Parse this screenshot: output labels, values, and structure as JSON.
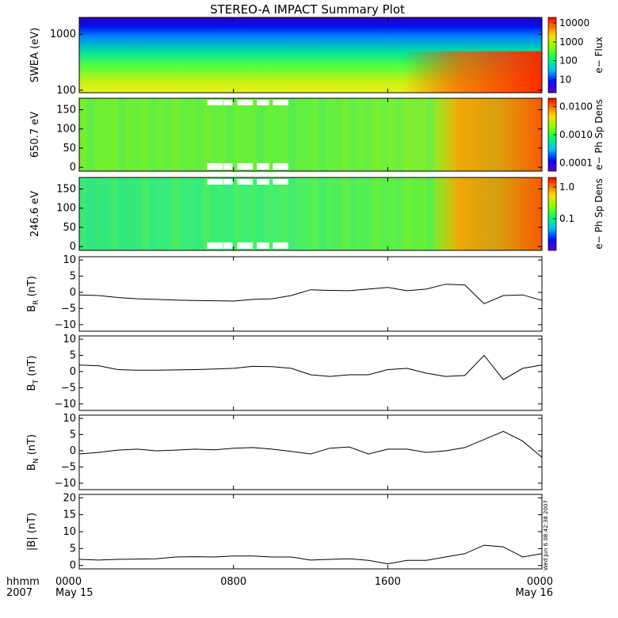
{
  "title": "STEREO-A IMPACT Summary Plot",
  "footer": {
    "hhmm": "hhmm",
    "year": "2007",
    "stamp": "Wed Jun  6 08:42:38 2007"
  },
  "colors": {
    "line": "#000000",
    "spectrogram_gap": "#ffffff"
  },
  "chart_data": [
    {
      "id": "swea",
      "type": "heatmap",
      "ylabel": "SWEA (eV)",
      "yscale": "log",
      "ylim": [
        90,
        2000
      ],
      "yticks": [
        {
          "v": 100,
          "label": "100"
        },
        {
          "v": 1000,
          "label": "1000"
        }
      ],
      "colorbar": {
        "label": "e− Flux",
        "scale": "log",
        "range": [
          2,
          20000
        ],
        "ticks": [
          {
            "v": 10,
            "label": "10"
          },
          {
            "v": 100,
            "label": "100"
          },
          {
            "v": 1000,
            "label": "1000"
          },
          {
            "v": 10000,
            "label": "10000"
          }
        ]
      },
      "colormap": "rainbow (purple-blue-cyan-green-yellow-red)"
    },
    {
      "id": "pad650",
      "type": "heatmap",
      "ylabel": "650.7 eV",
      "ylim": [
        -10,
        180
      ],
      "yticks": [
        {
          "v": 0,
          "label": "0"
        },
        {
          "v": 50,
          "label": "50"
        },
        {
          "v": 100,
          "label": "100"
        },
        {
          "v": 150,
          "label": "150"
        }
      ],
      "colorbar": {
        "label": "e− Ph Sp Dens",
        "scale": "log",
        "range": [
          5e-05,
          0.02
        ],
        "ticks": [
          {
            "v": 0.0001,
            "label": "0.0001"
          },
          {
            "v": 0.001,
            "label": "0.0010"
          },
          {
            "v": 0.01,
            "label": "0.0100"
          }
        ]
      }
    },
    {
      "id": "pad246",
      "type": "heatmap",
      "ylabel": "246.6 eV",
      "ylim": [
        -10,
        180
      ],
      "yticks": [
        {
          "v": 0,
          "label": "0"
        },
        {
          "v": 50,
          "label": "50"
        },
        {
          "v": 100,
          "label": "100"
        },
        {
          "v": 150,
          "label": "150"
        }
      ],
      "colorbar": {
        "label": "e− Ph Sp Dens",
        "scale": "log",
        "range": [
          0.01,
          2.0
        ],
        "ticks": [
          {
            "v": 0.1,
            "label": "0.1"
          },
          {
            "v": 1.0,
            "label": "1.0"
          }
        ]
      }
    },
    {
      "id": "br",
      "type": "line",
      "ylabel_main": "B",
      "ylabel_sub": "R",
      "ylabel_unit": " (nT)",
      "ylim": [
        -12,
        11
      ],
      "yticks": [
        {
          "v": -10,
          "label": "−10"
        },
        {
          "v": -5,
          "label": "−5"
        },
        {
          "v": 0,
          "label": "0"
        },
        {
          "v": 5,
          "label": "5"
        },
        {
          "v": 10,
          "label": "10"
        }
      ],
      "x": [
        0,
        1,
        2,
        3,
        4,
        5,
        6,
        7,
        8,
        9,
        10,
        11,
        12,
        13,
        14,
        15,
        16,
        17,
        18,
        19,
        20,
        21,
        22,
        23,
        24
      ],
      "values": [
        -0.8,
        -1.0,
        -1.6,
        -2.0,
        -2.2,
        -2.4,
        -2.5,
        -2.6,
        -2.7,
        -2.2,
        -2.0,
        -1.0,
        0.8,
        0.6,
        0.5,
        1.0,
        1.5,
        0.5,
        1.0,
        2.5,
        2.3,
        -3.5,
        -1.0,
        -0.8,
        -2.5
      ]
    },
    {
      "id": "bt",
      "type": "line",
      "ylabel_main": "B",
      "ylabel_sub": "T",
      "ylabel_unit": " (nT)",
      "ylim": [
        -12,
        11
      ],
      "yticks": [
        {
          "v": -10,
          "label": "−10"
        },
        {
          "v": -5,
          "label": "−5"
        },
        {
          "v": 0,
          "label": "0"
        },
        {
          "v": 5,
          "label": "5"
        },
        {
          "v": 10,
          "label": "10"
        }
      ],
      "x": [
        0,
        1,
        2,
        3,
        4,
        5,
        6,
        7,
        8,
        9,
        10,
        11,
        12,
        13,
        14,
        15,
        16,
        17,
        18,
        19,
        20,
        21,
        22,
        23,
        24
      ],
      "values": [
        2.0,
        1.8,
        0.6,
        0.4,
        0.4,
        0.5,
        0.6,
        0.8,
        1.0,
        1.6,
        1.5,
        1.0,
        -1.0,
        -1.5,
        -1.0,
        -1.0,
        0.6,
        1.0,
        -0.5,
        -1.5,
        -1.2,
        5.0,
        -2.5,
        1.0,
        2.0
      ]
    },
    {
      "id": "bn",
      "type": "line",
      "ylabel_main": "B",
      "ylabel_sub": "N",
      "ylabel_unit": " (nT)",
      "ylim": [
        -12,
        11
      ],
      "yticks": [
        {
          "v": -10,
          "label": "−10"
        },
        {
          "v": -5,
          "label": "−5"
        },
        {
          "v": 0,
          "label": "0"
        },
        {
          "v": 5,
          "label": "5"
        },
        {
          "v": 10,
          "label": "10"
        }
      ],
      "x": [
        0,
        1,
        2,
        3,
        4,
        5,
        6,
        7,
        8,
        9,
        10,
        11,
        12,
        13,
        14,
        15,
        16,
        17,
        18,
        19,
        20,
        21,
        22,
        23,
        24
      ],
      "values": [
        -1.0,
        -0.5,
        0.2,
        0.5,
        0.0,
        0.2,
        0.5,
        0.3,
        0.8,
        1.0,
        0.5,
        -0.2,
        -1.0,
        0.8,
        1.2,
        -1.0,
        0.5,
        0.5,
        -0.5,
        0.0,
        1.0,
        3.5,
        6.0,
        3.0,
        -2.0
      ]
    },
    {
      "id": "bmag",
      "type": "line",
      "ylabel_main": "|B|",
      "ylabel_sub": "",
      "ylabel_unit": " (nT)",
      "ylim": [
        -1,
        21
      ],
      "yticks": [
        {
          "v": 0,
          "label": "0"
        },
        {
          "v": 5,
          "label": "5"
        },
        {
          "v": 10,
          "label": "10"
        },
        {
          "v": 15,
          "label": "15"
        },
        {
          "v": 20,
          "label": "20"
        }
      ],
      "x": [
        0,
        1,
        2,
        3,
        4,
        5,
        6,
        7,
        8,
        9,
        10,
        11,
        12,
        13,
        14,
        15,
        16,
        17,
        18,
        19,
        20,
        21,
        22,
        23,
        24
      ],
      "values": [
        1.8,
        1.6,
        1.8,
        1.9,
        2.0,
        2.5,
        2.6,
        2.5,
        2.8,
        2.8,
        2.5,
        2.5,
        1.6,
        1.8,
        2.0,
        1.5,
        0.5,
        1.5,
        1.5,
        2.5,
        3.5,
        6.0,
        5.5,
        2.5,
        3.5
      ]
    }
  ],
  "xaxis": {
    "ticks": [
      {
        "v": 0,
        "label": "0000",
        "date": "May 15"
      },
      {
        "v": 8,
        "label": "0800",
        "date": ""
      },
      {
        "v": 16,
        "label": "1600",
        "date": ""
      },
      {
        "v": 24,
        "label": "0000",
        "date": "May 16"
      }
    ],
    "xlim": [
      0,
      24
    ]
  }
}
